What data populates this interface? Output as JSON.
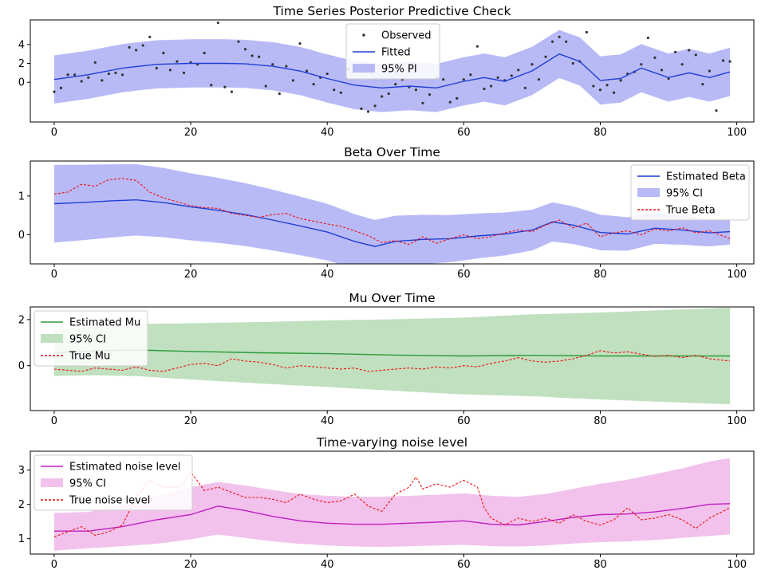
{
  "chart_data": [
    {
      "type": "line",
      "title": "Time Series Posterior Predictive Check",
      "xlim": [
        -3.5,
        102.5
      ],
      "ylim": [
        -4.2,
        6.6
      ],
      "xticks": [
        0,
        20,
        40,
        60,
        80,
        100
      ],
      "yticks": [
        0,
        2,
        4
      ],
      "legend": {
        "position": "upper-center",
        "entries": [
          "Observed",
          "Fitted",
          "95% PI"
        ]
      },
      "colors": {
        "line": "#1f3fd6",
        "band": "#b8baf6",
        "points": "#333333"
      },
      "series": [
        {
          "name": "Fitted",
          "kind": "line",
          "x": [
            0,
            5,
            10,
            15,
            20,
            25,
            28,
            32,
            36,
            40,
            44,
            48,
            52,
            56,
            60,
            63,
            66,
            70,
            74,
            77,
            80,
            83,
            86,
            90,
            93,
            96,
            99
          ],
          "y": [
            0.3,
            0.8,
            1.5,
            1.9,
            2.0,
            2.0,
            1.95,
            1.7,
            1.2,
            0.4,
            -0.3,
            -0.6,
            -0.4,
            -0.6,
            0.1,
            0.5,
            0.1,
            1.2,
            3.0,
            2.2,
            0.2,
            0.4,
            1.5,
            0.5,
            1.0,
            0.5,
            1.1
          ]
        },
        {
          "name": "95% PI",
          "kind": "band",
          "offset": 2.55
        },
        {
          "name": "Observed",
          "kind": "scatter",
          "x": [
            0,
            1,
            2,
            3,
            4,
            5,
            6,
            7,
            8,
            9,
            10,
            11,
            12,
            13,
            14,
            15,
            16,
            17,
            18,
            19,
            20,
            21,
            22,
            23,
            24,
            25,
            26,
            27,
            28,
            29,
            30,
            31,
            32,
            33,
            34,
            35,
            36,
            37,
            38,
            39,
            40,
            41,
            42,
            43,
            44,
            45,
            46,
            47,
            48,
            49,
            50,
            51,
            52,
            53,
            54,
            55,
            56,
            57,
            58,
            59,
            60,
            61,
            62,
            63,
            64,
            65,
            66,
            67,
            68,
            69,
            70,
            71,
            72,
            73,
            74,
            75,
            76,
            77,
            78,
            79,
            80,
            81,
            82,
            83,
            84,
            85,
            86,
            87,
            88,
            89,
            90,
            91,
            92,
            93,
            94,
            95,
            96,
            97,
            98,
            99
          ],
          "y": [
            -1.0,
            -0.6,
            0.8,
            0.8,
            0.1,
            0.5,
            2.1,
            0.2,
            0.9,
            1.0,
            0.8,
            3.7,
            3.4,
            3.9,
            4.8,
            1.5,
            3.1,
            1.3,
            2.2,
            1.0,
            2.1,
            1.9,
            3.1,
            -0.3,
            6.3,
            -0.5,
            -1.0,
            4.3,
            3.5,
            2.8,
            2.7,
            -0.4,
            1.9,
            -1.2,
            1.7,
            0.2,
            4.1,
            1.2,
            -0.2,
            0.5,
            0.9,
            -0.8,
            -1.1,
            1.4,
            1.2,
            -2.8,
            -3.1,
            -2.5,
            -1.5,
            -1.2,
            -0.2,
            0.3,
            -0.5,
            -0.8,
            -2.2,
            -1.3,
            0.5,
            0.3,
            -2.1,
            -1.7,
            0.3,
            0.8,
            3.8,
            -0.7,
            -0.4,
            0.5,
            0.2,
            0.7,
            1.3,
            -0.6,
            1.9,
            0.3,
            2.7,
            4.3,
            4.8,
            4.3,
            2.0,
            2.2,
            5.3,
            -0.4,
            -0.8,
            -0.3,
            -1.1,
            0.2,
            0.9,
            1.1,
            1.9,
            4.7,
            2.6,
            1.3,
            0.4,
            3.2,
            1.9,
            3.4,
            2.9,
            -0.2,
            1.2,
            -3.0,
            2.3,
            2.2
          ]
        }
      ]
    },
    {
      "type": "line",
      "title": "Beta Over Time",
      "xlim": [
        -3.5,
        102.5
      ],
      "ylim": [
        -0.75,
        1.9
      ],
      "xticks": [
        0,
        20,
        40,
        60,
        80,
        100
      ],
      "yticks": [
        0,
        1
      ],
      "legend": {
        "position": "top-right",
        "entries": [
          "Estimated Beta",
          "95% CI",
          "True Beta"
        ]
      },
      "colors": {
        "line": "#1f3fd6",
        "band": "#b8baf6",
        "true": "#ee1111"
      },
      "series": [
        {
          "name": "Estimated Beta",
          "kind": "line",
          "x": [
            0,
            4,
            8,
            12,
            16,
            20,
            24,
            28,
            32,
            36,
            40,
            44,
            47,
            50,
            54,
            58,
            62,
            66,
            70,
            73,
            76,
            80,
            84,
            88,
            92,
            96,
            99
          ],
          "y": [
            0.8,
            0.83,
            0.87,
            0.9,
            0.83,
            0.72,
            0.63,
            0.52,
            0.38,
            0.23,
            0.07,
            -0.17,
            -0.3,
            -0.17,
            -0.12,
            -0.1,
            -0.03,
            0.02,
            0.12,
            0.33,
            0.25,
            0.06,
            0.02,
            0.17,
            0.12,
            0.05,
            0.08
          ]
        },
        {
          "name": "95% CI",
          "kind": "band",
          "offset": 1.0,
          "offset_end": 0.33
        },
        {
          "name": "True Beta",
          "kind": "line",
          "x": [
            0,
            2,
            4,
            6,
            8,
            10,
            12,
            14,
            16,
            18,
            20,
            22,
            24,
            26,
            28,
            30,
            32,
            34,
            36,
            38,
            40,
            42,
            44,
            46,
            48,
            50,
            52,
            54,
            56,
            58,
            60,
            62,
            64,
            66,
            68,
            70,
            72,
            74,
            76,
            78,
            80,
            82,
            84,
            86,
            88,
            90,
            92,
            94,
            96,
            99
          ],
          "y": [
            1.05,
            1.1,
            1.3,
            1.25,
            1.42,
            1.45,
            1.4,
            1.1,
            0.95,
            0.85,
            0.75,
            0.7,
            0.68,
            0.55,
            0.5,
            0.45,
            0.52,
            0.55,
            0.42,
            0.35,
            0.28,
            0.22,
            0.1,
            -0.02,
            -0.2,
            -0.15,
            -0.25,
            -0.05,
            -0.22,
            -0.1,
            0.0,
            -0.1,
            -0.05,
            0.05,
            0.12,
            0.08,
            0.25,
            0.38,
            0.18,
            0.3,
            -0.05,
            0.05,
            0.1,
            0.0,
            0.15,
            0.1,
            0.18,
            0.05,
            0.1,
            -0.1
          ]
        }
      ]
    },
    {
      "type": "line",
      "title": "Mu Over Time",
      "xlim": [
        -3.5,
        102.5
      ],
      "ylim": [
        -1.95,
        2.55
      ],
      "xticks": [
        0,
        20,
        40,
        60,
        80,
        100
      ],
      "yticks": [
        0,
        2
      ],
      "legend": {
        "position": "top-left",
        "entries": [
          "Estimated Mu",
          "95% CI",
          "True Mu"
        ]
      },
      "colors": {
        "line": "#2e9b3a",
        "band": "#c0e0c0",
        "true": "#ee1111"
      },
      "series": [
        {
          "name": "Estimated Mu",
          "kind": "line",
          "x": [
            0,
            6,
            12,
            20,
            30,
            40,
            50,
            60,
            70,
            80,
            90,
            99
          ],
          "y": [
            0.55,
            0.65,
            0.68,
            0.62,
            0.56,
            0.52,
            0.46,
            0.42,
            0.45,
            0.42,
            0.42,
            0.42
          ]
        },
        {
          "name": "95% CI",
          "kind": "band",
          "offset": 1.0,
          "offset_end": 2.1
        },
        {
          "name": "True Mu",
          "kind": "line",
          "x": [
            0,
            2,
            4,
            6,
            8,
            10,
            12,
            14,
            16,
            18,
            20,
            22,
            24,
            26,
            28,
            30,
            32,
            34,
            36,
            38,
            40,
            42,
            44,
            46,
            48,
            50,
            52,
            54,
            56,
            58,
            60,
            62,
            64,
            66,
            68,
            70,
            72,
            74,
            76,
            78,
            80,
            82,
            84,
            86,
            88,
            90,
            92,
            94,
            96,
            99
          ],
          "y": [
            -0.15,
            -0.2,
            -0.25,
            -0.1,
            -0.15,
            -0.2,
            -0.05,
            -0.2,
            -0.25,
            -0.1,
            0.05,
            0.1,
            0.0,
            0.3,
            0.2,
            0.15,
            0.05,
            -0.1,
            0.0,
            -0.05,
            -0.1,
            -0.15,
            -0.1,
            -0.25,
            -0.2,
            -0.15,
            -0.1,
            -0.15,
            -0.05,
            -0.1,
            0.0,
            -0.05,
            0.1,
            0.2,
            0.35,
            0.2,
            0.15,
            0.2,
            0.3,
            0.45,
            0.65,
            0.55,
            0.6,
            0.5,
            0.4,
            0.45,
            0.35,
            0.45,
            0.3,
            0.2
          ]
        }
      ]
    },
    {
      "type": "line",
      "title": "Time-varying noise level",
      "xlim": [
        -3.5,
        102.5
      ],
      "ylim": [
        0.55,
        3.55
      ],
      "xticks": [
        0,
        20,
        40,
        60,
        80,
        100
      ],
      "yticks": [
        1,
        2,
        3
      ],
      "legend": {
        "position": "top-left",
        "entries": [
          "Estimated noise level",
          "95% CI",
          "True noise level"
        ]
      },
      "colors": {
        "line": "#c020c0",
        "band": "#f2c2ec",
        "true": "#ee1111"
      },
      "series": [
        {
          "name": "Estimated noise level",
          "kind": "line",
          "x": [
            0,
            5,
            10,
            15,
            20,
            24,
            28,
            32,
            36,
            40,
            44,
            48,
            52,
            56,
            60,
            64,
            68,
            72,
            76,
            80,
            84,
            88,
            92,
            96,
            99
          ],
          "y": [
            1.22,
            1.22,
            1.35,
            1.55,
            1.7,
            1.95,
            1.82,
            1.65,
            1.52,
            1.45,
            1.42,
            1.42,
            1.45,
            1.48,
            1.52,
            1.42,
            1.4,
            1.5,
            1.62,
            1.7,
            1.72,
            1.78,
            1.88,
            2.0,
            2.02
          ]
        },
        {
          "name": "95% CI",
          "kind": "band",
          "x": [
            0,
            5,
            10,
            15,
            20,
            24,
            28,
            32,
            36,
            40,
            44,
            48,
            52,
            56,
            60,
            64,
            68,
            72,
            76,
            80,
            84,
            88,
            92,
            96,
            99
          ],
          "lower": [
            0.65,
            0.72,
            0.78,
            0.85,
            0.98,
            1.12,
            1.02,
            0.92,
            0.85,
            0.8,
            0.77,
            0.76,
            0.78,
            0.8,
            0.82,
            0.78,
            0.77,
            0.8,
            0.86,
            0.9,
            0.92,
            0.96,
            1.02,
            1.08,
            1.12
          ],
          "upper": [
            1.75,
            1.78,
            2.0,
            2.25,
            2.5,
            2.65,
            2.55,
            2.42,
            2.3,
            2.25,
            2.22,
            2.22,
            2.25,
            2.28,
            2.32,
            2.25,
            2.22,
            2.3,
            2.45,
            2.6,
            2.72,
            2.88,
            3.05,
            3.25,
            3.35
          ]
        },
        {
          "name": "True noise level",
          "kind": "line",
          "x": [
            0,
            2,
            4,
            6,
            8,
            10,
            12,
            14,
            16,
            18,
            19,
            20,
            22,
            24,
            26,
            28,
            30,
            32,
            34,
            36,
            38,
            40,
            42,
            44,
            46,
            48,
            50,
            52,
            53,
            54,
            56,
            58,
            60,
            62,
            63,
            64,
            66,
            68,
            70,
            72,
            74,
            76,
            78,
            80,
            82,
            84,
            86,
            88,
            90,
            92,
            94,
            96,
            99
          ],
          "y": [
            1.05,
            1.2,
            1.35,
            1.1,
            1.2,
            1.4,
            2.2,
            2.7,
            2.5,
            2.5,
            2.6,
            2.95,
            2.4,
            2.5,
            2.35,
            2.2,
            2.2,
            2.15,
            2.05,
            2.3,
            2.15,
            2.05,
            2.1,
            2.3,
            1.95,
            1.8,
            2.3,
            2.5,
            2.8,
            2.45,
            2.6,
            2.5,
            2.7,
            2.5,
            1.9,
            1.6,
            1.4,
            1.6,
            1.5,
            1.6,
            1.45,
            1.7,
            1.5,
            1.4,
            1.55,
            1.9,
            1.55,
            1.6,
            1.7,
            1.55,
            1.3,
            1.6,
            1.9
          ]
        }
      ]
    }
  ]
}
